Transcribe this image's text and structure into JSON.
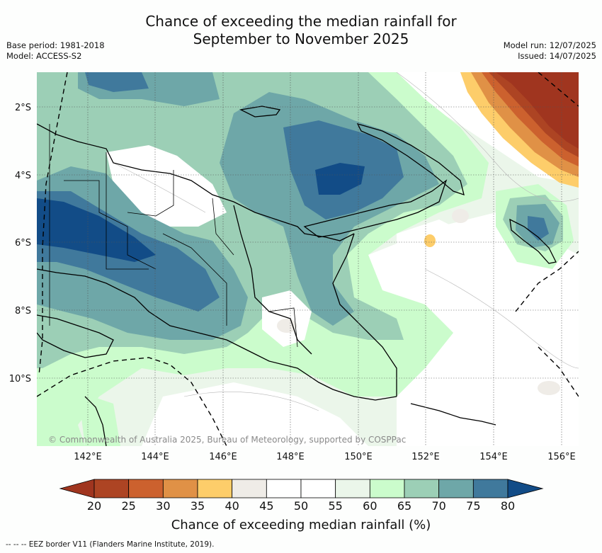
{
  "title_line1": "Chance of exceeding the median rainfall for",
  "title_line2": "September to November 2025",
  "meta_left": {
    "base_period": "Base period: 1981-2018",
    "model": "Model: ACCESS-S2"
  },
  "meta_right": {
    "model_run": "Model run: 12/07/2025",
    "issued": "Issued: 14/07/2025"
  },
  "copyright": "© Commonwealth of Australia 2025, Bureau of Meteorology, supported by COSPPac",
  "footnote": "--  --  -- EEZ border V11 (Flanders Marine Institute, 2019).",
  "map": {
    "lat_ticks": [
      "2°S",
      "4°S",
      "6°S",
      "8°S",
      "10°S"
    ],
    "lon_ticks": [
      "142°E",
      "144°E",
      "146°E",
      "148°E",
      "150°E",
      "152°E",
      "154°E",
      "156°E"
    ]
  },
  "colorbar": {
    "title": "Chance of exceeding median rainfall (%)",
    "ticks": [
      "20",
      "25",
      "30",
      "35",
      "40",
      "45",
      "50",
      "55",
      "60",
      "65",
      "70",
      "75",
      "80"
    ],
    "under_color": "#a0351f",
    "over_color": "#124c87",
    "colors": [
      "#ad4423",
      "#cc612e",
      "#e09146",
      "#fdcd6a",
      "#efece7",
      "#ffffff",
      "#ffffff",
      "#ebf6ea",
      "#cbfccc",
      "#9ccfb6",
      "#6ea7a8",
      "#40799c"
    ]
  }
}
